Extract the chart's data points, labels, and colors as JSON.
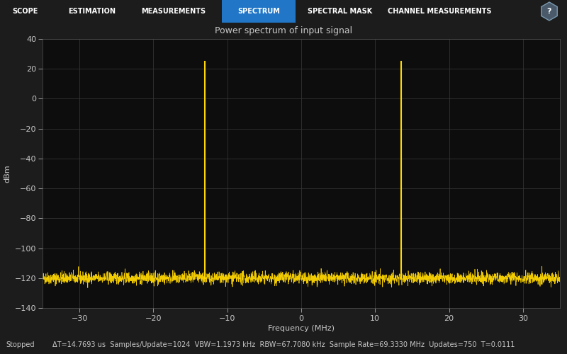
{
  "title": "Power spectrum of input signal",
  "xlabel": "Frequency (MHz)",
  "ylabel": "dBm",
  "xlim": [
    -35,
    35
  ],
  "ylim": [
    -140,
    40
  ],
  "yticks": [
    -140,
    -120,
    -100,
    -80,
    -60,
    -40,
    -20,
    0,
    20,
    40
  ],
  "xticks": [
    -30,
    -20,
    -10,
    0,
    10,
    20,
    30
  ],
  "noise_floor": -120,
  "noise_amplitude": 3.5,
  "spike1_x": -13.0,
  "spike1_y": 25,
  "spike2_x": 13.5,
  "spike2_y": 25,
  "spike_color": "#FFD700",
  "noise_color": "#FFD700",
  "bg_color": "#1c1c1c",
  "plot_bg": "#0d0d0d",
  "grid_color": "#3a3a3a",
  "text_color": "#c8c8c8",
  "tab_bar_color": "#1a5799",
  "tab_active_color": "#2176c7",
  "tab_labels": [
    "SCOPE",
    "ESTIMATION",
    "MEASUREMENTS",
    "SPECTRUM",
    "SPECTRAL MASK",
    "CHANNEL MEASUREMENTS"
  ],
  "tab_active_index": 3,
  "status_text": "ΔT=14.7693 us  Samples/Update=1024  VBW=1.1973 kHz  RBW=67.7080 kHz  Sample Rate=69.3330 MHz  Updates=750  T=0.0111",
  "status_left": "Stopped",
  "title_fontsize": 9,
  "axis_fontsize": 8,
  "tick_fontsize": 8
}
